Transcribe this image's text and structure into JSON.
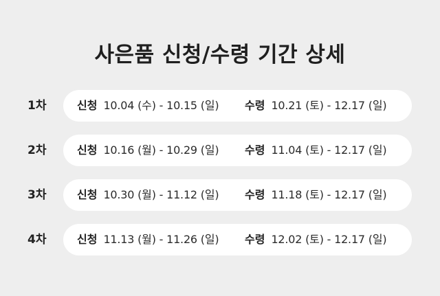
{
  "title": "사은품 신청/수령 기간 상세",
  "apply_label": "신청",
  "receive_label": "수령",
  "rounds": [
    {
      "round": "1차",
      "apply": "10.04 (수) - 10.15 (일)",
      "receive": "10.21 (토) - 12.17 (일)"
    },
    {
      "round": "2차",
      "apply": "10.16 (월) - 10.29 (일)",
      "receive": "11.04 (토) - 12.17 (일)"
    },
    {
      "round": "3차",
      "apply": "10.30 (월) - 11.12 (일)",
      "receive": "11.18 (토) - 12.17 (일)"
    },
    {
      "round": "4차",
      "apply": "11.13 (월) - 11.26 (일)",
      "receive": "12.02 (토) - 12.17 (일)"
    }
  ]
}
